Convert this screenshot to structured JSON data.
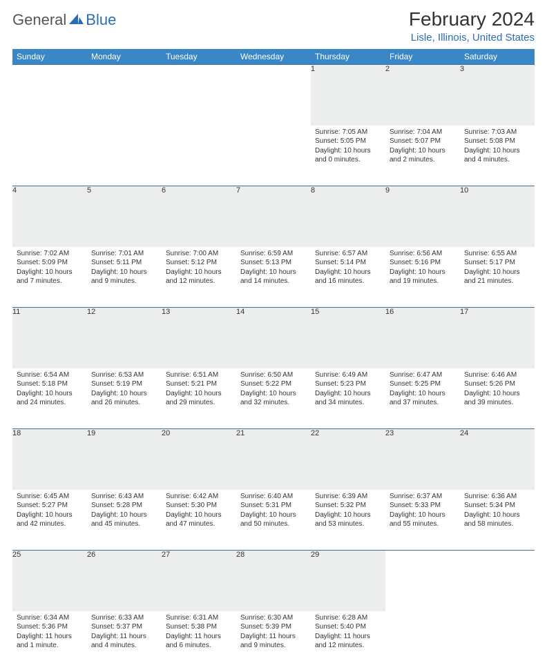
{
  "logo": {
    "part1": "General",
    "part2": "Blue"
  },
  "title": "February 2024",
  "location": "Lisle, Illinois, United States",
  "columns": [
    "Sunday",
    "Monday",
    "Tuesday",
    "Wednesday",
    "Thursday",
    "Friday",
    "Saturday"
  ],
  "colors": {
    "header_bg": "#3a87c8",
    "header_fg": "#ffffff",
    "accent": "#2a6db5",
    "daynum_bg": "#eceded",
    "rule": "#3a6ea5"
  },
  "weeks": [
    [
      null,
      null,
      null,
      null,
      {
        "n": "1",
        "sunrise": "7:05 AM",
        "sunset": "5:05 PM",
        "daylight": "10 hours and 0 minutes."
      },
      {
        "n": "2",
        "sunrise": "7:04 AM",
        "sunset": "5:07 PM",
        "daylight": "10 hours and 2 minutes."
      },
      {
        "n": "3",
        "sunrise": "7:03 AM",
        "sunset": "5:08 PM",
        "daylight": "10 hours and 4 minutes."
      }
    ],
    [
      {
        "n": "4",
        "sunrise": "7:02 AM",
        "sunset": "5:09 PM",
        "daylight": "10 hours and 7 minutes."
      },
      {
        "n": "5",
        "sunrise": "7:01 AM",
        "sunset": "5:11 PM",
        "daylight": "10 hours and 9 minutes."
      },
      {
        "n": "6",
        "sunrise": "7:00 AM",
        "sunset": "5:12 PM",
        "daylight": "10 hours and 12 minutes."
      },
      {
        "n": "7",
        "sunrise": "6:59 AM",
        "sunset": "5:13 PM",
        "daylight": "10 hours and 14 minutes."
      },
      {
        "n": "8",
        "sunrise": "6:57 AM",
        "sunset": "5:14 PM",
        "daylight": "10 hours and 16 minutes."
      },
      {
        "n": "9",
        "sunrise": "6:56 AM",
        "sunset": "5:16 PM",
        "daylight": "10 hours and 19 minutes."
      },
      {
        "n": "10",
        "sunrise": "6:55 AM",
        "sunset": "5:17 PM",
        "daylight": "10 hours and 21 minutes."
      }
    ],
    [
      {
        "n": "11",
        "sunrise": "6:54 AM",
        "sunset": "5:18 PM",
        "daylight": "10 hours and 24 minutes."
      },
      {
        "n": "12",
        "sunrise": "6:53 AM",
        "sunset": "5:19 PM",
        "daylight": "10 hours and 26 minutes."
      },
      {
        "n": "13",
        "sunrise": "6:51 AM",
        "sunset": "5:21 PM",
        "daylight": "10 hours and 29 minutes."
      },
      {
        "n": "14",
        "sunrise": "6:50 AM",
        "sunset": "5:22 PM",
        "daylight": "10 hours and 32 minutes."
      },
      {
        "n": "15",
        "sunrise": "6:49 AM",
        "sunset": "5:23 PM",
        "daylight": "10 hours and 34 minutes."
      },
      {
        "n": "16",
        "sunrise": "6:47 AM",
        "sunset": "5:25 PM",
        "daylight": "10 hours and 37 minutes."
      },
      {
        "n": "17",
        "sunrise": "6:46 AM",
        "sunset": "5:26 PM",
        "daylight": "10 hours and 39 minutes."
      }
    ],
    [
      {
        "n": "18",
        "sunrise": "6:45 AM",
        "sunset": "5:27 PM",
        "daylight": "10 hours and 42 minutes."
      },
      {
        "n": "19",
        "sunrise": "6:43 AM",
        "sunset": "5:28 PM",
        "daylight": "10 hours and 45 minutes."
      },
      {
        "n": "20",
        "sunrise": "6:42 AM",
        "sunset": "5:30 PM",
        "daylight": "10 hours and 47 minutes."
      },
      {
        "n": "21",
        "sunrise": "6:40 AM",
        "sunset": "5:31 PM",
        "daylight": "10 hours and 50 minutes."
      },
      {
        "n": "22",
        "sunrise": "6:39 AM",
        "sunset": "5:32 PM",
        "daylight": "10 hours and 53 minutes."
      },
      {
        "n": "23",
        "sunrise": "6:37 AM",
        "sunset": "5:33 PM",
        "daylight": "10 hours and 55 minutes."
      },
      {
        "n": "24",
        "sunrise": "6:36 AM",
        "sunset": "5:34 PM",
        "daylight": "10 hours and 58 minutes."
      }
    ],
    [
      {
        "n": "25",
        "sunrise": "6:34 AM",
        "sunset": "5:36 PM",
        "daylight": "11 hours and 1 minute."
      },
      {
        "n": "26",
        "sunrise": "6:33 AM",
        "sunset": "5:37 PM",
        "daylight": "11 hours and 4 minutes."
      },
      {
        "n": "27",
        "sunrise": "6:31 AM",
        "sunset": "5:38 PM",
        "daylight": "11 hours and 6 minutes."
      },
      {
        "n": "28",
        "sunrise": "6:30 AM",
        "sunset": "5:39 PM",
        "daylight": "11 hours and 9 minutes."
      },
      {
        "n": "29",
        "sunrise": "6:28 AM",
        "sunset": "5:40 PM",
        "daylight": "11 hours and 12 minutes."
      },
      null,
      null
    ]
  ]
}
